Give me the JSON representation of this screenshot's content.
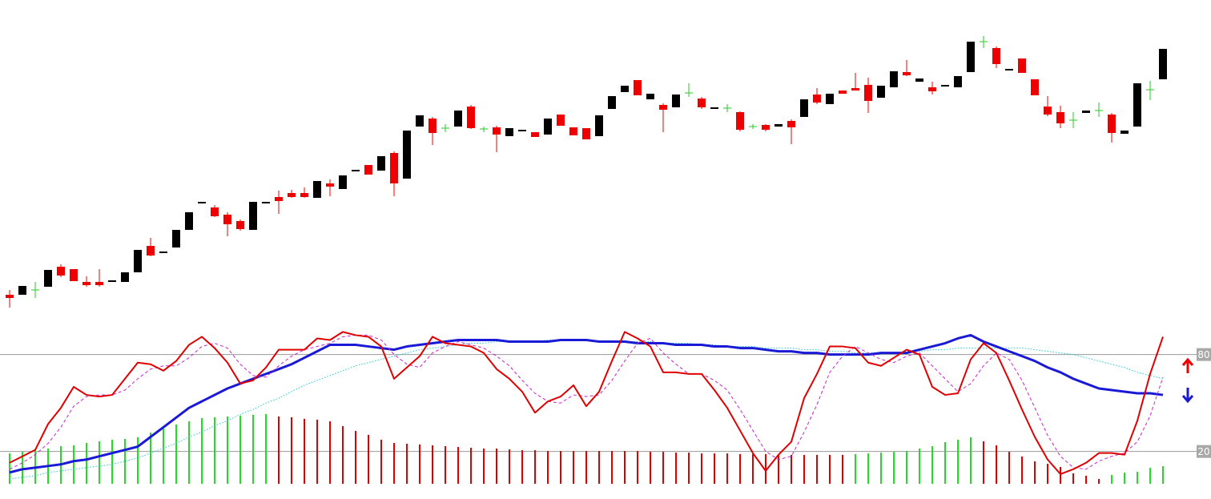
{
  "chart_data": [
    {
      "type": "candlestick",
      "ylim": [
        0,
        400
      ],
      "up_color": "#000000",
      "down_color": "#ee0000",
      "flat_color": "#22cc22",
      "open": [
        32,
        32,
        38,
        42,
        67,
        64,
        48,
        48,
        48,
        48,
        60,
        93,
        84,
        91,
        113,
        146,
        141,
        132,
        124,
        113,
        146,
        154,
        159,
        159,
        153,
        171,
        164,
        186,
        194,
        187,
        209,
        177,
        242,
        252,
        240,
        242,
        267,
        239,
        241,
        230,
        236,
        235,
        232,
        257,
        241,
        240,
        230,
        264,
        285,
        300,
        276,
        269,
        266,
        284,
        277,
        264,
        265,
        260,
        242,
        244,
        242,
        249,
        254,
        282,
        270,
        287,
        290,
        294,
        278,
        291,
        310,
        298,
        291,
        292,
        291,
        310,
        348,
        340,
        312,
        327,
        301,
        267,
        260,
        250,
        259,
        262,
        257,
        233,
        242,
        288,
        301
      ],
      "high": [
        38,
        43,
        48,
        63,
        70,
        64,
        55,
        64,
        50,
        60,
        88,
        103,
        86,
        113,
        135,
        148,
        144,
        135,
        126,
        148,
        148,
        162,
        163,
        166,
        174,
        176,
        181,
        188,
        194,
        205,
        211,
        237,
        256,
        254,
        245,
        262,
        269,
        242,
        243,
        240,
        238,
        235,
        252,
        257,
        241,
        240,
        256,
        280,
        293,
        300,
        283,
        271,
        282,
        296,
        279,
        266,
        270,
        261,
        245,
        245,
        245,
        251,
        276,
        290,
        283,
        287,
        309,
        303,
        293,
        311,
        325,
        302,
        298,
        294,
        305,
        348,
        355,
        342,
        314,
        327,
        301,
        280,
        268,
        260,
        262,
        272,
        259,
        237,
        296,
        299,
        339
      ],
      "low": [
        16,
        32,
        28,
        42,
        54,
        49,
        42,
        42,
        48,
        48,
        60,
        80,
        84,
        91,
        113,
        146,
        129,
        105,
        112,
        113,
        146,
        133,
        153,
        153,
        153,
        155,
        164,
        186,
        182,
        187,
        155,
        177,
        242,
        219,
        235,
        242,
        239,
        235,
        210,
        230,
        236,
        229,
        232,
        243,
        231,
        226,
        230,
        264,
        285,
        281,
        276,
        235,
        266,
        279,
        264,
        264,
        260,
        236,
        239,
        236,
        242,
        220,
        254,
        270,
        270,
        283,
        287,
        259,
        278,
        291,
        305,
        298,
        282,
        292,
        291,
        310,
        340,
        315,
        312,
        309,
        281,
        255,
        240,
        240,
        259,
        254,
        222,
        233,
        242,
        275,
        301
      ],
      "close": [
        28,
        43,
        38,
        63,
        56,
        49,
        44,
        44,
        50,
        60,
        88,
        81,
        86,
        113,
        135,
        148,
        130,
        120,
        114,
        148,
        148,
        149,
        154,
        154,
        174,
        167,
        181,
        188,
        182,
        205,
        171,
        237,
        256,
        234,
        240,
        262,
        240,
        239,
        232,
        240,
        238,
        229,
        252,
        243,
        231,
        226,
        256,
        280,
        293,
        281,
        283,
        263,
        282,
        284,
        266,
        266,
        265,
        238,
        242,
        238,
        245,
        241,
        276,
        272,
        283,
        283,
        287,
        274,
        293,
        311,
        306,
        302,
        286,
        294,
        305,
        348,
        348,
        320,
        314,
        309,
        281,
        257,
        246,
        250,
        262,
        262,
        234,
        237,
        296,
        288,
        339
      ]
    },
    {
      "type": "oscillator",
      "ylim": [
        0,
        100
      ],
      "yticks": [
        20,
        80
      ],
      "series": [
        {
          "type": "bar",
          "up_color": "#22dd22",
          "down_color": "#e00000",
          "values": [
            18.8,
            19.8,
            20.8,
            21.8,
            23.3,
            23.8,
            25.3,
            26.3,
            27.3,
            27.8,
            28.8,
            31.7,
            34.2,
            36.7,
            38.7,
            40.7,
            41.2,
            41.7,
            42.2,
            42.7,
            43.2,
            41.7,
            41.2,
            40.2,
            39.7,
            38.7,
            35.7,
            32.7,
            30.3,
            27.3,
            25.3,
            24.8,
            24.3,
            23.8,
            23.3,
            22.8,
            22.3,
            21.8,
            21.8,
            21.3,
            20.8,
            20.8,
            20.3,
            20.3,
            20.3,
            20.3,
            20.3,
            20.3,
            20.3,
            20.3,
            19.8,
            19.8,
            19.3,
            19.3,
            18.8,
            18.8,
            18.8,
            18.4,
            18.4,
            18.4,
            17.9,
            17.9,
            17.9,
            17.9,
            17.9,
            17.9,
            18.4,
            18.8,
            19.3,
            19.8,
            20.3,
            21.8,
            23.3,
            25.8,
            27.3,
            28.8,
            26.3,
            23.8,
            19.8,
            16.9,
            13.9,
            12.4,
            10.4,
            6.5,
            5.0,
            3.0,
            5.5,
            6.9,
            7.4,
            9.9,
            10.9
          ]
        },
        {
          "type": "line",
          "color": "#22cccc",
          "width": 1,
          "dash": "dotted",
          "values": [
            3,
            4,
            5,
            7,
            8,
            9,
            10,
            11,
            12,
            14,
            16,
            19,
            22,
            25,
            29,
            32,
            36,
            39,
            43,
            46,
            50,
            53,
            57,
            61,
            64,
            67,
            70,
            73,
            75,
            77,
            79,
            81,
            83,
            84,
            85,
            86,
            87,
            87,
            88,
            88,
            88,
            88,
            89,
            89,
            89,
            89,
            88,
            88,
            88,
            88,
            88,
            87,
            87,
            87,
            86,
            86,
            85,
            85,
            85,
            84,
            84,
            84,
            83,
            83,
            82,
            82,
            81,
            81,
            81,
            81,
            82,
            82,
            83,
            83,
            84,
            84,
            84,
            84,
            84,
            84,
            83,
            82,
            81,
            80,
            78,
            76,
            74,
            72,
            69,
            67,
            65
          ]
        },
        {
          "type": "line",
          "color": "#1a1ad6",
          "width": 3,
          "dash": "solid",
          "values": [
            7,
            9,
            10,
            11,
            12,
            14,
            15,
            17,
            19,
            21,
            23,
            29,
            35,
            41,
            47,
            51,
            55,
            59,
            62,
            65,
            68,
            71,
            74,
            78,
            82,
            86,
            86,
            86,
            85,
            84,
            83,
            85,
            86,
            87,
            88,
            89,
            89,
            89,
            89,
            88,
            88,
            88,
            88,
            89,
            89,
            89,
            88,
            88,
            88,
            87,
            87,
            87,
            86,
            86,
            86,
            85,
            85,
            84,
            84,
            83,
            82,
            82,
            81,
            81,
            80,
            80,
            80,
            80,
            81,
            81,
            81,
            83,
            85,
            87,
            90,
            92,
            88,
            85,
            82,
            79,
            76,
            72,
            69,
            65,
            62,
            59,
            58,
            57,
            56,
            56,
            55
          ]
        },
        {
          "type": "line",
          "color": "#cc22cc",
          "width": 1,
          "dash": "dashed",
          "values": [
            9,
            13,
            18,
            25,
            35,
            48,
            54,
            55,
            55,
            58,
            65,
            71,
            73,
            73,
            78,
            85,
            87,
            84,
            74,
            67,
            66,
            73,
            79,
            83,
            85,
            87,
            91,
            92,
            92,
            89,
            80,
            74,
            72,
            81,
            85,
            88,
            86,
            84,
            79,
            73,
            64,
            56,
            51,
            50,
            55,
            54,
            55,
            64,
            76,
            87,
            90,
            81,
            74,
            68,
            68,
            64,
            58,
            46,
            33,
            20,
            15,
            17,
            32,
            49,
            69,
            79,
            85,
            81,
            77,
            75,
            79,
            81,
            73,
            65,
            57,
            62,
            73,
            81,
            77,
            64,
            47,
            30,
            17,
            10,
            9,
            14,
            17,
            19,
            26,
            42,
            66
          ]
        },
        {
          "type": "line",
          "color": "#e00000",
          "width": 2,
          "dash": "solid",
          "values": [
            13,
            17,
            21,
            37,
            47,
            60,
            55,
            54,
            55,
            65,
            75,
            74,
            70,
            76,
            86,
            91,
            84,
            75,
            62,
            64,
            72,
            83,
            83,
            83,
            90,
            89,
            94,
            92,
            91,
            85,
            65,
            72,
            79,
            91,
            87,
            86,
            85,
            81,
            71,
            65,
            57,
            44,
            51,
            54,
            61,
            48,
            57,
            76,
            94,
            90,
            85,
            69,
            69,
            68,
            68,
            58,
            47,
            33,
            19,
            8,
            18,
            26,
            53,
            68,
            85,
            85,
            84,
            75,
            73,
            78,
            83,
            80,
            60,
            55,
            56,
            77,
            87,
            81,
            64,
            46,
            29,
            15,
            6,
            9,
            13,
            19,
            19,
            18,
            39,
            68,
            91
          ]
        }
      ]
    }
  ]
}
